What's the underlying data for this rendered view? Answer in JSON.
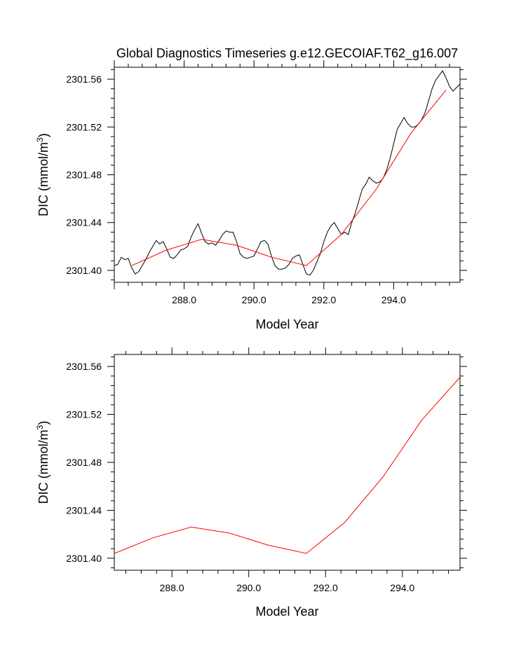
{
  "chart_data": [
    {
      "type": "line",
      "title": "Global Diagnostics Timeseries g.e12.GECOIAF.T62_g16.007",
      "xlabel": "Model Year",
      "ylabel_main": "DIC (mmol/m",
      "ylabel_sup": "3",
      "ylabel_close": ")",
      "xlim": [
        286.0,
        295.9
      ],
      "ylim": [
        2301.39,
        2301.57
      ],
      "xticks": [
        288.0,
        290.0,
        292.0,
        294.0
      ],
      "xtick_labels": [
        "288.0",
        "290.0",
        "292.0",
        "294.0"
      ],
      "yticks": [
        2301.4,
        2301.44,
        2301.48,
        2301.52,
        2301.56
      ],
      "ytick_labels": [
        "2301.40",
        "2301.44",
        "2301.48",
        "2301.52",
        "2301.56"
      ],
      "series": [
        {
          "color": "#000000",
          "x": [
            286.0,
            286.1,
            286.2,
            286.3,
            286.4,
            286.5,
            286.6,
            286.7,
            286.8,
            286.9,
            287.0,
            287.1,
            287.2,
            287.3,
            287.4,
            287.5,
            287.6,
            287.7,
            287.8,
            287.9,
            288.0,
            288.1,
            288.2,
            288.3,
            288.4,
            288.5,
            288.6,
            288.7,
            288.8,
            288.9,
            289.0,
            289.1,
            289.2,
            289.3,
            289.4,
            289.5,
            289.6,
            289.7,
            289.8,
            289.9,
            290.0,
            290.1,
            290.2,
            290.3,
            290.4,
            290.5,
            290.6,
            290.7,
            290.8,
            290.9,
            291.0,
            291.1,
            291.2,
            291.3,
            291.4,
            291.5,
            291.6,
            291.7,
            291.8,
            291.9,
            292.0,
            292.1,
            292.2,
            292.3,
            292.4,
            292.5,
            292.6,
            292.7,
            292.8,
            292.9,
            293.0,
            293.1,
            293.2,
            293.3,
            293.4,
            293.5,
            293.6,
            293.7,
            293.8,
            293.9,
            294.0,
            294.1,
            294.2,
            294.3,
            294.4,
            294.5,
            294.6,
            294.7,
            294.8,
            294.9,
            295.0,
            295.1,
            295.2,
            295.3,
            295.4,
            295.5,
            295.6,
            295.7,
            295.8,
            295.9
          ],
          "y": [
            2301.404,
            2301.405,
            2301.411,
            2301.409,
            2301.41,
            2301.402,
            2301.397,
            2301.399,
            2301.404,
            2301.409,
            2301.415,
            2301.42,
            2301.425,
            2301.422,
            2301.424,
            2301.418,
            2301.411,
            2301.41,
            2301.413,
            2301.417,
            2301.418,
            2301.42,
            2301.428,
            2301.434,
            2301.439,
            2301.431,
            2301.424,
            2301.422,
            2301.423,
            2301.421,
            2301.425,
            2301.43,
            2301.433,
            2301.432,
            2301.432,
            2301.424,
            2301.414,
            2301.411,
            2301.41,
            2301.411,
            2301.412,
            2301.418,
            2301.424,
            2301.425,
            2301.422,
            2301.412,
            2301.404,
            2301.401,
            2301.401,
            2301.402,
            2301.405,
            2301.41,
            2301.412,
            2301.413,
            2301.405,
            2301.397,
            2301.396,
            2301.4,
            2301.407,
            2301.414,
            2301.424,
            2301.432,
            2301.437,
            2301.44,
            2301.435,
            2301.43,
            2301.432,
            2301.43,
            2301.44,
            2301.448,
            2301.458,
            2301.468,
            2301.472,
            2301.478,
            2301.475,
            2301.473,
            2301.474,
            2301.477,
            2301.484,
            2301.494,
            2301.506,
            2301.518,
            2301.523,
            2301.528,
            2301.523,
            2301.52,
            2301.52,
            2301.522,
            2301.526,
            2301.532,
            2301.542,
            2301.552,
            2301.559,
            2301.563,
            2301.567,
            2301.561,
            2301.554,
            2301.55,
            2301.553,
            2301.556
          ]
        },
        {
          "color": "#ff0000",
          "x": [
            286.5,
            287.5,
            288.5,
            289.5,
            290.5,
            291.5,
            292.5,
            293.5,
            294.5,
            295.5
          ],
          "y": [
            2301.404,
            2301.417,
            2301.426,
            2301.421,
            2301.411,
            2301.404,
            2301.43,
            2301.468,
            2301.515,
            2301.551
          ]
        }
      ],
      "grid": false,
      "legend": "none"
    },
    {
      "type": "line",
      "title": "",
      "xlabel": "Model Year",
      "ylabel_main": "DIC (mmol/m",
      "ylabel_sup": "3",
      "ylabel_close": ")",
      "xlim": [
        286.5,
        295.5
      ],
      "ylim": [
        2301.39,
        2301.57
      ],
      "xticks": [
        288.0,
        290.0,
        292.0,
        294.0
      ],
      "xtick_labels": [
        "288.0",
        "290.0",
        "292.0",
        "294.0"
      ],
      "yticks": [
        2301.4,
        2301.44,
        2301.48,
        2301.52,
        2301.56
      ],
      "ytick_labels": [
        "2301.40",
        "2301.44",
        "2301.48",
        "2301.52",
        "2301.56"
      ],
      "series": [
        {
          "color": "#ff0000",
          "x": [
            286.5,
            287.5,
            288.5,
            289.5,
            290.5,
            291.5,
            292.5,
            293.5,
            294.5,
            295.5
          ],
          "y": [
            2301.404,
            2301.417,
            2301.426,
            2301.421,
            2301.411,
            2301.404,
            2301.43,
            2301.468,
            2301.515,
            2301.551
          ]
        }
      ],
      "grid": false,
      "legend": "none"
    }
  ]
}
